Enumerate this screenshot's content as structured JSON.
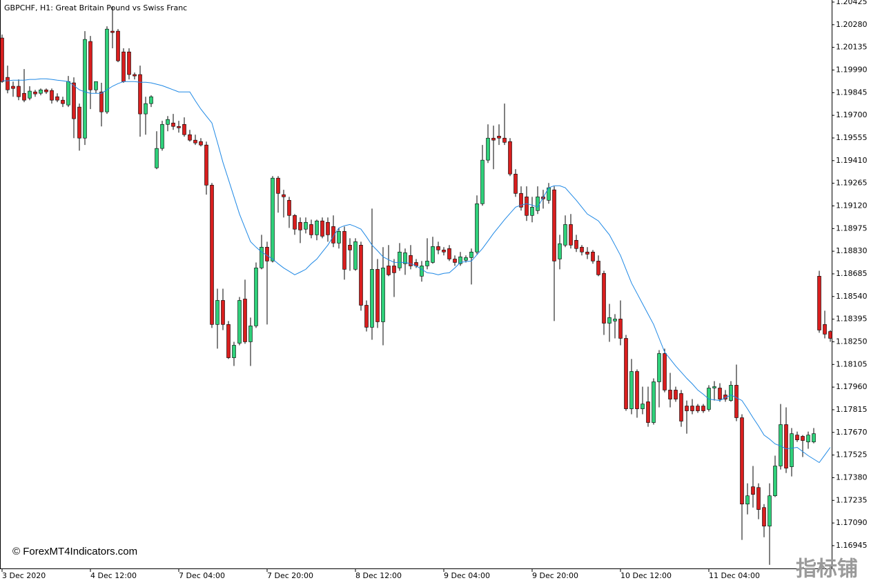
{
  "chart_data": {
    "type": "candlestick",
    "title": "GBPCHF, H1:  Great Britain Pound vs Swiss Franc",
    "watermark": "© ForexMT4Indicators.com",
    "corner_mark": "指标铺",
    "up_color": "#2fd07a",
    "down_color": "#d81e1e",
    "wick_color": "#000000",
    "categories": [
      "3 Dec 2020",
      null,
      null,
      null,
      null,
      null,
      null,
      null,
      null,
      null,
      null,
      null,
      null,
      null,
      null,
      null,
      "4 Dec 12:00",
      null,
      null,
      null,
      null,
      null,
      null,
      null,
      null,
      null,
      null,
      null,
      null,
      null,
      null,
      null,
      "7 Dec 04:00",
      null,
      null,
      null,
      null,
      null,
      null,
      null,
      null,
      null,
      null,
      null,
      null,
      null,
      null,
      null,
      "7 Dec 20:00",
      null,
      null,
      null,
      null,
      null,
      null,
      null,
      null,
      null,
      null,
      null,
      null,
      null,
      null,
      null,
      "8 Dec 12:00",
      null,
      null,
      null,
      null,
      null,
      null,
      null,
      null,
      null,
      null,
      null,
      null,
      null,
      null,
      null,
      "9 Dec 04:00",
      null,
      null,
      null,
      null,
      null,
      null,
      null,
      null,
      null,
      null,
      null,
      null,
      null,
      null,
      null,
      "9 Dec 20:00",
      null,
      null,
      null,
      null,
      null,
      null,
      null,
      null,
      null,
      null,
      null,
      null,
      null,
      null,
      null,
      "10 Dec 12:00",
      null,
      null,
      null,
      null,
      null,
      null,
      null,
      null,
      null,
      null,
      null,
      null,
      null,
      null,
      null,
      "11 Dec 04:00",
      null,
      null,
      null,
      null,
      null,
      null,
      null,
      null,
      null,
      null,
      null,
      null,
      null,
      null,
      null,
      null,
      null,
      null,
      null,
      null,
      null,
      null
    ],
    "open": [
      1.20195,
      1.19943,
      1.19886,
      1.19886,
      1.19841,
      1.1981,
      1.1985,
      1.19841,
      1.19863,
      1.19859,
      1.19819,
      1.19797,
      1.19766,
      1.19908,
      1.19753,
      1.19554,
      1.20173,
      1.19863,
      1.1985,
      1.19722,
      1.20239,
      1.20239,
      1.20106,
      1.20106,
      1.19961,
      1.19961,
      1.19709,
      1.19775,
      1.19364,
      1.19488,
      1.19642,
      1.19651,
      1.19629,
      1.19642,
      1.19576,
      1.19541,
      1.19532,
      1.1951,
      1.19253,
      1.18361,
      1.18515,
      1.18361,
      1.18148,
      1.18241,
      1.18524,
      1.1825,
      1.18352,
      1.18723,
      1.18856,
      1.18767,
      1.19298,
      1.19192,
      1.19156,
      1.19059,
      1.19015,
      1.18971,
      1.19001,
      1.18935,
      1.19024,
      1.19015,
      1.18988,
      1.18882,
      1.18957,
      1.18869,
      1.18714,
      1.18869,
      1.18484,
      1.18343,
      1.18714,
      1.18378,
      1.18736,
      1.18736,
      1.18723,
      1.1875,
      1.18803,
      1.18758,
      1.1867,
      1.18736,
      1.18758,
      1.1886,
      1.18838,
      1.18847,
      1.1878,
      1.1875,
      1.18772,
      1.18789,
      1.18825,
      1.19134,
      1.19413,
      1.19554,
      1.19567,
      1.19554,
      1.19532,
      1.19324,
      1.192,
      1.19178,
      1.19059,
      1.1909,
      1.19178,
      1.19156,
      1.19223,
      1.1878,
      1.18869,
      1.19001,
      1.189,
      1.18856,
      1.18825,
      1.18825,
      1.18767,
      1.18688,
      1.18369,
      1.18383,
      1.18396,
      1.18272,
      1.17821,
      1.1806,
      1.17821,
      1.17866,
      1.17733,
      1.17994,
      1.18175,
      1.17941,
      1.17941,
      1.17919,
      1.17839,
      1.17839,
      1.17839,
      1.17839,
      1.17817,
      1.17954,
      1.17954,
      1.1791,
      1.17874,
      1.17972,
      1.17764,
      1.17211,
      1.17322,
      1.17317,
      1.17189,
      1.1707,
      1.17264,
      1.17455,
      1.1772,
      1.1745,
      1.17653,
      1.17645,
      1.17609,
      1.17609,
      1.1867,
      1.18361,
      1.18316
    ],
    "high": [
      1.20217,
      1.20018,
      1.19916,
      1.1993,
      1.19996,
      1.19886,
      1.19863,
      1.19872,
      1.19872,
      1.19872,
      1.19841,
      1.19819,
      1.19952,
      1.19943,
      1.19775,
      1.20239,
      1.20208,
      1.19916,
      1.19908,
      1.2027,
      1.20394,
      1.20252,
      1.20129,
      1.20129,
      1.19974,
      1.20018,
      1.19819,
      1.19828,
      1.19598,
      1.19665,
      1.19695,
      1.19709,
      1.19665,
      1.19687,
      1.19607,
      1.19576,
      1.19554,
      1.19532,
      1.19267,
      1.1859,
      1.1859,
      1.18383,
      1.1825,
      1.18537,
      1.18648,
      1.18405,
      1.18758,
      1.18935,
      1.18891,
      1.19311,
      1.19311,
      1.19223,
      1.19178,
      1.19068,
      1.19046,
      1.19046,
      1.19032,
      1.19032,
      1.19046,
      1.19046,
      1.19059,
      1.18979,
      1.18988,
      1.18913,
      1.18913,
      1.18891,
      1.18515,
      1.19103,
      1.1878,
      1.18856,
      1.18869,
      1.1878,
      1.18882,
      1.18847,
      1.18869,
      1.1878,
      1.18767,
      1.18913,
      1.18922,
      1.18891,
      1.18856,
      1.18869,
      1.18803,
      1.18825,
      1.18803,
      1.18847,
      1.19187,
      1.1951,
      1.19642,
      1.19634,
      1.19642,
      1.19775,
      1.19554,
      1.19355,
      1.19245,
      1.19245,
      1.19178,
      1.19245,
      1.19223,
      1.19267,
      1.19245,
      1.18935,
      1.19059,
      1.19068,
      1.18935,
      1.18869,
      1.18856,
      1.18838,
      1.18803,
      1.18705,
      1.18493,
      1.18427,
      1.18515,
      1.18294,
      1.1814,
      1.18073,
      1.17963,
      1.17963,
      1.18016,
      1.18197,
      1.18206,
      1.18051,
      1.17963,
      1.17941,
      1.17874,
      1.17883,
      1.17852,
      1.17852,
      1.17972,
      1.17998,
      1.17985,
      1.17941,
      1.17998,
      1.18104,
      1.17786,
      1.17344,
      1.17455,
      1.17344,
      1.17211,
      1.17344,
      1.17521,
      1.17852,
      1.1783,
      1.17698,
      1.17675,
      1.17653,
      1.17675,
      1.17698,
      1.18705,
      1.18449,
      1.18325
    ],
    "low": [
      1.19908,
      1.19841,
      1.19819,
      1.19797,
      1.19784,
      1.19797,
      1.19819,
      1.19828,
      1.19837,
      1.19775,
      1.19784,
      1.19753,
      1.19753,
      1.19554,
      1.19474,
      1.1951,
      1.1974,
      1.19841,
      1.19629,
      1.19709,
      1.20129,
      1.2004,
      1.19908,
      1.1993,
      1.1993,
      1.19563,
      1.19576,
      1.19753,
      1.19355,
      1.19474,
      1.19598,
      1.19607,
      1.19589,
      1.19563,
      1.19532,
      1.1951,
      1.19501,
      1.19192,
      1.18339,
      1.18206,
      1.18325,
      1.1814,
      1.18095,
      1.18228,
      1.18237,
      1.18095,
      1.18339,
      1.18714,
      1.18361,
      1.18758,
      1.19077,
      1.19046,
      1.18979,
      1.18935,
      1.18882,
      1.18944,
      1.18913,
      1.189,
      1.18913,
      1.18891,
      1.18856,
      1.18847,
      1.18648,
      1.18705,
      1.18705,
      1.18449,
      1.18316,
      1.18263,
      1.18339,
      1.18228,
      1.1867,
      1.18537,
      1.18705,
      1.18679,
      1.18714,
      1.18723,
      1.18635,
      1.18714,
      1.1875,
      1.18811,
      1.18803,
      1.18767,
      1.18736,
      1.18736,
      1.18758,
      1.18617,
      1.18811,
      1.19121,
      1.19395,
      1.19355,
      1.1951,
      1.1951,
      1.19311,
      1.19178,
      1.1909,
      1.19024,
      1.19015,
      1.19068,
      1.19103,
      1.19134,
      1.18383,
      1.18714,
      1.18856,
      1.18847,
      1.18825,
      1.18803,
      1.1878,
      1.1875,
      1.1867,
      1.18294,
      1.1825,
      1.18272,
      1.18228,
      1.17808,
      1.17786,
      1.17764,
      1.17786,
      1.17706,
      1.1772,
      1.1783,
      1.17927,
      1.1783,
      1.17866,
      1.17706,
      1.17662,
      1.17786,
      1.17795,
      1.17795,
      1.17804,
      1.17874,
      1.17866,
      1.17866,
      1.17866,
      1.17742,
      1.16982,
      1.17145,
      1.17189,
      1.17114,
      1.16999,
      1.16822,
      1.17256,
      1.17432,
      1.1741,
      1.17388,
      1.17609,
      1.17512,
      1.17565,
      1.176,
      1.18308,
      1.18272,
      1.1825
    ],
    "close": [
      1.19916,
      1.19863,
      1.19872,
      1.19819,
      1.19797,
      1.19855,
      1.19837,
      1.19863,
      1.1985,
      1.19797,
      1.19797,
      1.19775,
      1.19916,
      1.19678,
      1.19554,
      1.20186,
      1.19863,
      1.19916,
      1.19722,
      1.20252,
      1.2023,
      1.20049,
      1.19916,
      1.19961,
      1.19952,
      1.19709,
      1.19775,
      1.19819,
      1.19488,
      1.19642,
      1.19673,
      1.19629,
      1.1962,
      1.19576,
      1.19541,
      1.19523,
      1.1951,
      1.19253,
      1.18361,
      1.18515,
      1.18361,
      1.18148,
      1.18228,
      1.18515,
      1.1825,
      1.18352,
      1.18723,
      1.18856,
      1.18767,
      1.19298,
      1.192,
      1.19178,
      1.19059,
      1.18971,
      1.18966,
      1.19015,
      1.18935,
      1.19024,
      1.18926,
      1.18935,
      1.18882,
      1.18957,
      1.18714,
      1.18838,
      1.18891,
      1.18484,
      1.18343,
      1.18714,
      1.18378,
      1.18723,
      1.18679,
      1.18692,
      1.18825,
      1.1882,
      1.18736,
      1.18736,
      1.18736,
      1.18767,
      1.1886,
      1.18838,
      1.18825,
      1.1878,
      1.18758,
      1.18794,
      1.18789,
      1.18825,
      1.19134,
      1.19413,
      1.19554,
      1.19541,
      1.19554,
      1.19527,
      1.19324,
      1.192,
      1.19112,
      1.19059,
      1.19112,
      1.19178,
      1.19165,
      1.19236,
      1.18767,
      1.18878,
      1.19001,
      1.18869,
      1.18847,
      1.18825,
      1.18811,
      1.18767,
      1.18679,
      1.18369,
      1.18405,
      1.18396,
      1.18272,
      1.17821,
      1.1806,
      1.17821,
      1.17852,
      1.17733,
      1.17994,
      1.18175,
      1.17941,
      1.17883,
      1.17883,
      1.17742,
      1.17808,
      1.17808,
      1.17808,
      1.17808,
      1.17954,
      1.17963,
      1.17883,
      1.17883,
      1.17972,
      1.17764,
      1.17211,
      1.17264,
      1.17273,
      1.17176,
      1.1707,
      1.17264,
      1.17455,
      1.1772,
      1.17441,
      1.17662,
      1.17622,
      1.17618,
      1.17653,
      1.17662,
      1.18325,
      1.18299,
      1.18272
    ],
    "lines": [
      {
        "color": "#1e88e5",
        "values": [
          1.19921,
          1.19921,
          1.19925,
          1.19925,
          1.19925,
          1.1993,
          1.1993,
          1.19934,
          1.19934,
          1.1993,
          1.19925,
          1.19921,
          1.19916,
          1.1989,
          1.19863,
          1.1985,
          1.19841,
          1.19841,
          1.19841,
          1.19863,
          1.19886,
          1.19903,
          1.19916,
          1.19916,
          1.19916,
          1.19912,
          1.19912,
          1.19908,
          1.19899,
          1.1989,
          1.19877,
          1.19863,
          1.1985,
          1.1985,
          1.1985,
          1.19793,
          1.1974,
          1.19695,
          1.19651,
          1.19527,
          1.19399,
          1.19289,
          1.19178,
          1.19068,
          1.18979,
          1.18891,
          1.18856,
          1.18825,
          1.18803,
          1.1878,
          1.1875,
          1.18723,
          1.18701,
          1.18679,
          1.18696,
          1.18714,
          1.1875,
          1.1878,
          1.18825,
          1.18869,
          1.18926,
          1.18979,
          1.18993,
          1.19001,
          1.18988,
          1.18971,
          1.18922,
          1.18869,
          1.18833,
          1.18794,
          1.18776,
          1.18758,
          1.18758,
          1.18758,
          1.1875,
          1.18736,
          1.18714,
          1.18692,
          1.18688,
          1.18679,
          1.18688,
          1.18692,
          1.18723,
          1.18758,
          1.18763,
          1.18767,
          1.18807,
          1.18847,
          1.18895,
          1.18944,
          1.18988,
          1.19032,
          1.19072,
          1.19112,
          1.19125,
          1.19134,
          1.19125,
          1.19112,
          1.19174,
          1.19236,
          1.19249,
          1.19249,
          1.19236,
          1.19196,
          1.19156,
          1.19112,
          1.19068,
          1.19046,
          1.19024,
          1.18979,
          1.18935,
          1.18869,
          1.18803,
          1.18714,
          1.18626,
          1.1856,
          1.18493,
          1.18427,
          1.18361,
          1.18272,
          1.18184,
          1.1814,
          1.18095,
          1.18056,
          1.18016,
          1.17981,
          1.17941,
          1.17914,
          1.17883,
          1.17879,
          1.17874,
          1.17892,
          1.1791,
          1.17892,
          1.17874,
          1.17821,
          1.17764,
          1.17711,
          1.17653,
          1.17627,
          1.17596,
          1.17583,
          1.17565,
          1.17569,
          1.17574,
          1.17547,
          1.17521,
          1.17499,
          1.17477,
          1.17525,
          1.17574
        ]
      }
    ],
    "ylim": [
      1.16799,
      1.20425
    ],
    "yticks": [
      1.20425,
      {
        "value": 1.2028,
        "label": "1.20280"
      },
      1.20135,
      {
        "value": 1.1999,
        "label": "1.19990"
      },
      1.19845,
      {
        "value": 1.197,
        "label": "1.19700"
      },
      1.19555,
      {
        "value": 1.1941,
        "label": "1.19410"
      },
      1.19265,
      {
        "value": 1.1912,
        "label": "1.19120"
      },
      1.18975,
      {
        "value": 1.1883,
        "label": "1.18830"
      },
      1.18685,
      {
        "value": 1.1854,
        "label": "1.18540"
      },
      1.18395,
      {
        "value": 1.1825,
        "label": "1.18250"
      },
      1.18105,
      {
        "value": 1.1796,
        "label": "1.17960"
      },
      1.17815,
      {
        "value": 1.1767,
        "label": "1.17670"
      },
      1.17525,
      {
        "value": 1.1738,
        "label": "1.17380"
      },
      1.17235,
      {
        "value": 1.1709,
        "label": "1.17090"
      },
      1.16945
    ]
  }
}
